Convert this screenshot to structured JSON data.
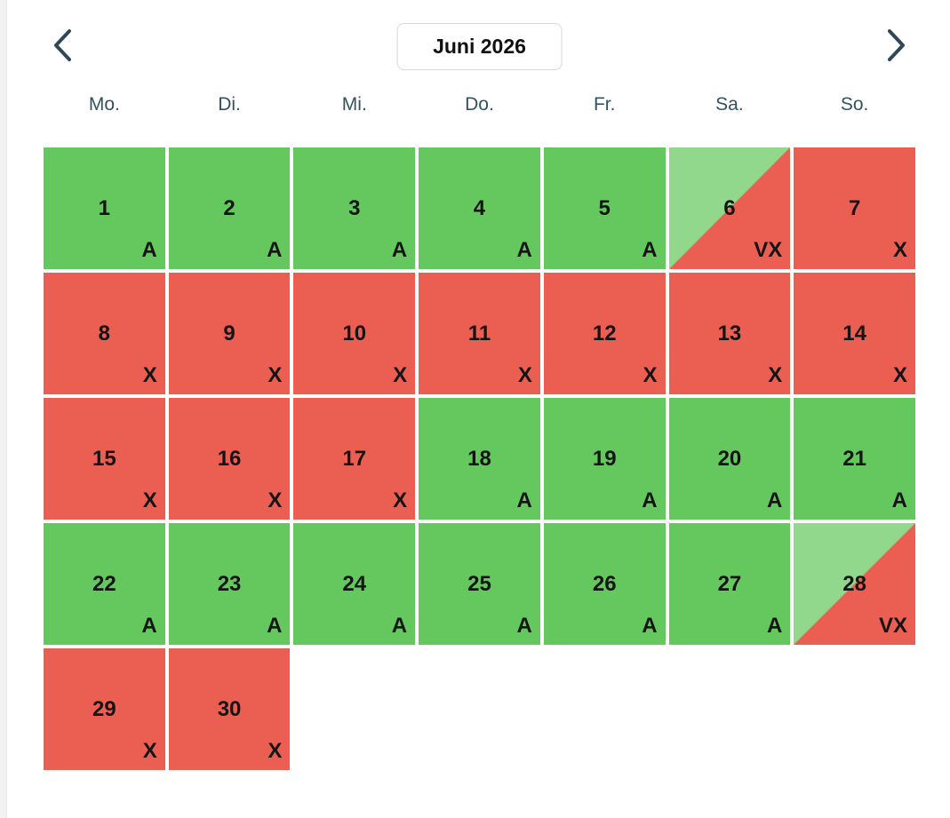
{
  "header": {
    "title": "Juni 2026",
    "prev_icon": "chevron-left-icon",
    "next_icon": "chevron-right-icon"
  },
  "weekdays": [
    "Mo.",
    "Di.",
    "Mi.",
    "Do.",
    "Fr.",
    "Sa.",
    "So."
  ],
  "colors": {
    "available": "#64c85f",
    "unavailable": "#eb5f52",
    "partial_light": "#91d88c",
    "header_text": "#33525f",
    "chevron": "#2f4858",
    "title_border": "#d9d9d9"
  },
  "status_labels": {
    "available": "A",
    "unavailable": "X",
    "partial": "VX"
  },
  "days": [
    {
      "day": 1,
      "status": "available",
      "label": "A"
    },
    {
      "day": 2,
      "status": "available",
      "label": "A"
    },
    {
      "day": 3,
      "status": "available",
      "label": "A"
    },
    {
      "day": 4,
      "status": "available",
      "label": "A"
    },
    {
      "day": 5,
      "status": "available",
      "label": "A"
    },
    {
      "day": 6,
      "status": "partial",
      "label": "VX"
    },
    {
      "day": 7,
      "status": "unavailable",
      "label": "X"
    },
    {
      "day": 8,
      "status": "unavailable",
      "label": "X"
    },
    {
      "day": 9,
      "status": "unavailable",
      "label": "X"
    },
    {
      "day": 10,
      "status": "unavailable",
      "label": "X"
    },
    {
      "day": 11,
      "status": "unavailable",
      "label": "X"
    },
    {
      "day": 12,
      "status": "unavailable",
      "label": "X"
    },
    {
      "day": 13,
      "status": "unavailable",
      "label": "X"
    },
    {
      "day": 14,
      "status": "unavailable",
      "label": "X"
    },
    {
      "day": 15,
      "status": "unavailable",
      "label": "X"
    },
    {
      "day": 16,
      "status": "unavailable",
      "label": "X"
    },
    {
      "day": 17,
      "status": "unavailable",
      "label": "X"
    },
    {
      "day": 18,
      "status": "available",
      "label": "A"
    },
    {
      "day": 19,
      "status": "available",
      "label": "A"
    },
    {
      "day": 20,
      "status": "available",
      "label": "A"
    },
    {
      "day": 21,
      "status": "available",
      "label": "A"
    },
    {
      "day": 22,
      "status": "available",
      "label": "A"
    },
    {
      "day": 23,
      "status": "available",
      "label": "A"
    },
    {
      "day": 24,
      "status": "available",
      "label": "A"
    },
    {
      "day": 25,
      "status": "available",
      "label": "A"
    },
    {
      "day": 26,
      "status": "available",
      "label": "A"
    },
    {
      "day": 27,
      "status": "available",
      "label": "A"
    },
    {
      "day": 28,
      "status": "partial",
      "label": "VX"
    },
    {
      "day": 29,
      "status": "unavailable",
      "label": "X"
    },
    {
      "day": 30,
      "status": "unavailable",
      "label": "X"
    }
  ]
}
